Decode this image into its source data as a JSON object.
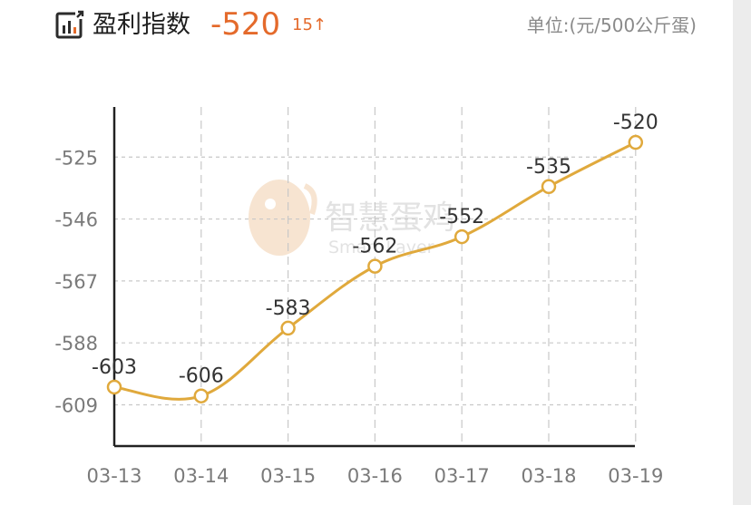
{
  "header": {
    "title": "盈利指数",
    "value": "-520",
    "change": "15↑",
    "unit": "单位:(元/500公斤蛋)",
    "icon": "bar-chart-icon"
  },
  "watermark": {
    "text_cn": "智慧蛋鸡",
    "text_en": "Smart Layer"
  },
  "colors": {
    "line": "#e0a93c",
    "accent": "#e46a2b",
    "axis": "#222222",
    "grid": "#c8c8c8",
    "tick_text": "#7a7a7a",
    "label_text": "#333333"
  },
  "chart_data": {
    "type": "line",
    "title": "",
    "xlabel": "",
    "ylabel": "",
    "categories": [
      "03-13",
      "03-14",
      "03-15",
      "03-16",
      "03-17",
      "03-18",
      "03-19"
    ],
    "series": [
      {
        "values": [
          -603,
          -606,
          -583,
          -562,
          -552,
          -535,
          -520
        ]
      }
    ],
    "data_labels": [
      "-603",
      "-606",
      "-583",
      "-562",
      "-552",
      "-535",
      "-520"
    ],
    "y_ticks": [
      -525,
      -546,
      -567,
      -588,
      -609
    ],
    "y_tick_labels": [
      "-525",
      "-546",
      "-567",
      "-588",
      "-609"
    ],
    "ylim": [
      -623,
      -508
    ],
    "grid": true,
    "legend": "none"
  }
}
